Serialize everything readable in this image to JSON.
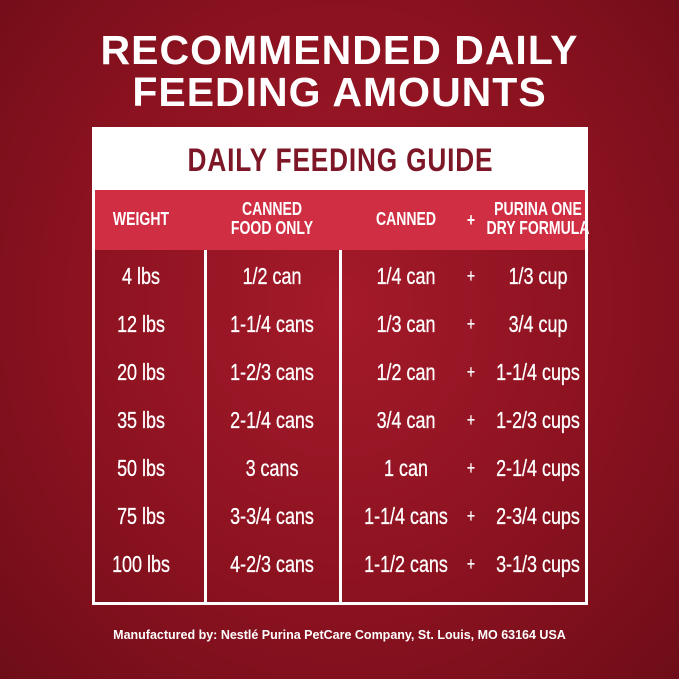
{
  "title": {
    "line1": "RECOMMENDED DAILY",
    "line2": "FEEDING AMOUNTS"
  },
  "guide_title": "DAILY FEEDING GUIDE",
  "headers": {
    "weight": "WEIGHT",
    "canned_only_1": "CANNED",
    "canned_only_2": "FOOD ONLY",
    "canned": "CANNED",
    "plus": "+",
    "dry_1": "PURINA ONE",
    "dry_2": "DRY FORMULA"
  },
  "rows": [
    {
      "weight": "4 lbs",
      "canned_only": "1/2 can",
      "canned": "1/4 can",
      "plus": "+",
      "dry": "1/3 cup"
    },
    {
      "weight": "12 lbs",
      "canned_only": "1-1/4 cans",
      "canned": "1/3 can",
      "plus": "+",
      "dry": "3/4 cup"
    },
    {
      "weight": "20 lbs",
      "canned_only": "1-2/3 cans",
      "canned": "1/2 can",
      "plus": "+",
      "dry": "1-1/4 cups"
    },
    {
      "weight": "35 lbs",
      "canned_only": "2-1/4 cans",
      "canned": "3/4 can",
      "plus": "+",
      "dry": "1-2/3 cups"
    },
    {
      "weight": "50 lbs",
      "canned_only": "3 cans",
      "canned": "1 can",
      "plus": "+",
      "dry": "2-1/4 cups"
    },
    {
      "weight": "75 lbs",
      "canned_only": "3-3/4 cans",
      "canned": "1-1/4 cans",
      "plus": "+",
      "dry": "2-3/4 cups"
    },
    {
      "weight": "100 lbs",
      "canned_only": "4-2/3 cans",
      "canned": "1-1/2 cans",
      "plus": "+",
      "dry": "3-1/3 cups"
    }
  ],
  "footer": "Manufactured by: Nestlé Purina PetCare Company, St. Louis, MO 63164 USA",
  "colors": {
    "background": "#8c1220",
    "header": "#d02e43",
    "guide_text": "#7d1626"
  }
}
